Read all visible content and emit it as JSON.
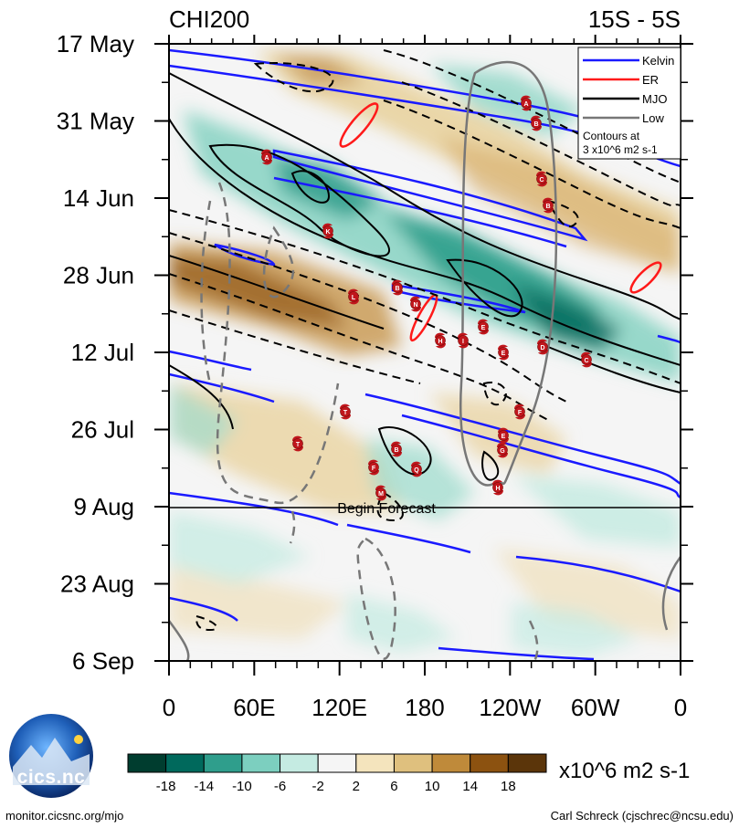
{
  "chart_data": {
    "type": "heatmap",
    "title_left": "CHI200",
    "title_right": "15S - 5S",
    "x_ticks": [
      "0",
      "60E",
      "120E",
      "180",
      "120W",
      "60W",
      "0"
    ],
    "y_ticks": [
      "17 May",
      "31 May",
      "14 Jun",
      "28 Jun",
      "12 Jul",
      "26 Jul",
      "9 Aug",
      "23 Aug",
      "6 Sep"
    ],
    "forecast_label": "Begin Forecast",
    "legend": {
      "entries": [
        {
          "name": "Kelvin",
          "color": "#1a1aff"
        },
        {
          "name": "ER",
          "color": "#ff1a1a"
        },
        {
          "name": "MJO",
          "color": "#000000"
        },
        {
          "name": "Low",
          "color": "#777777"
        }
      ],
      "note_lines": [
        "Contours at",
        "3 x10^6 m2 s-1"
      ]
    },
    "colorbar": {
      "levels": [
        "-18",
        "-14",
        "-10",
        "-6",
        "-2",
        "2",
        "6",
        "10",
        "14",
        "18"
      ],
      "colors": [
        "#003d2f",
        "#00695c",
        "#2f9e8c",
        "#7ccfbf",
        "#c5ebe2",
        "#f5f5f5",
        "#f4e4bd",
        "#dfc07e",
        "#bf8a3a",
        "#8c5210",
        "#5b350a"
      ],
      "units": "x10^6 m2 s-1"
    },
    "storm_labels": [
      "A",
      "B",
      "C",
      "B",
      "A",
      "K",
      "B",
      "L",
      "N",
      "H",
      "I",
      "E",
      "E",
      "D",
      "C",
      "F",
      "E",
      "G",
      "H",
      "T",
      "T",
      "F",
      "B",
      "Q",
      "M"
    ]
  },
  "logo": {
    "text": "cics.nc"
  },
  "footer": {
    "left": "monitor.cicsnc.org/mjo",
    "right": "Carl Schreck (cjschrec@ncsu.edu)"
  }
}
